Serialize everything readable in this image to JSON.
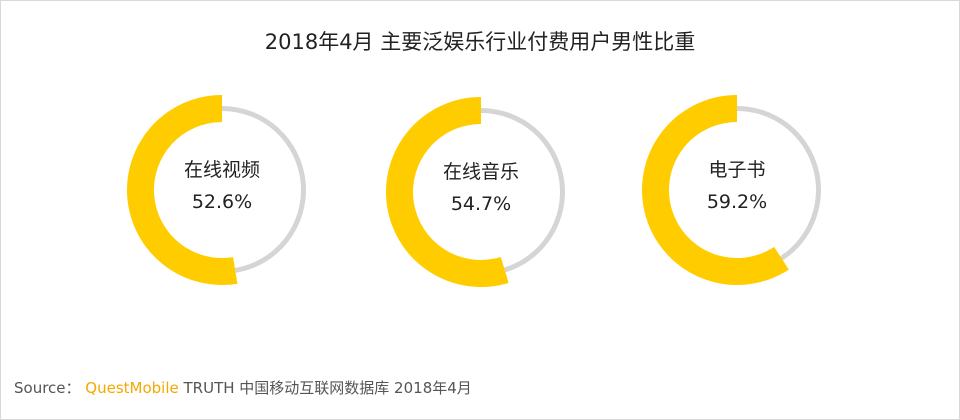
{
  "title": "2018年4月 主要泛娱乐行业付费用户男性比重",
  "source": {
    "prefix": "Source： ",
    "brand": "QuestMobile",
    "rest": " TRUTH 中国移动互联网数据库 2018年4月"
  },
  "colors": {
    "male": "#ffcc00",
    "remainder": "#d5d5d5",
    "text": "#222222",
    "brand": "#f5a800"
  },
  "chart_data": {
    "type": "pie",
    "subtype": "donut",
    "title": "2018年4月 主要泛娱乐行业付费用户男性比重",
    "unit": "%",
    "categories": [
      "在线视频",
      "在线音乐",
      "电子书"
    ],
    "values": [
      52.6,
      54.7,
      59.2
    ],
    "labels": [
      "52.6%",
      "54.7%",
      "59.2%"
    ]
  }
}
